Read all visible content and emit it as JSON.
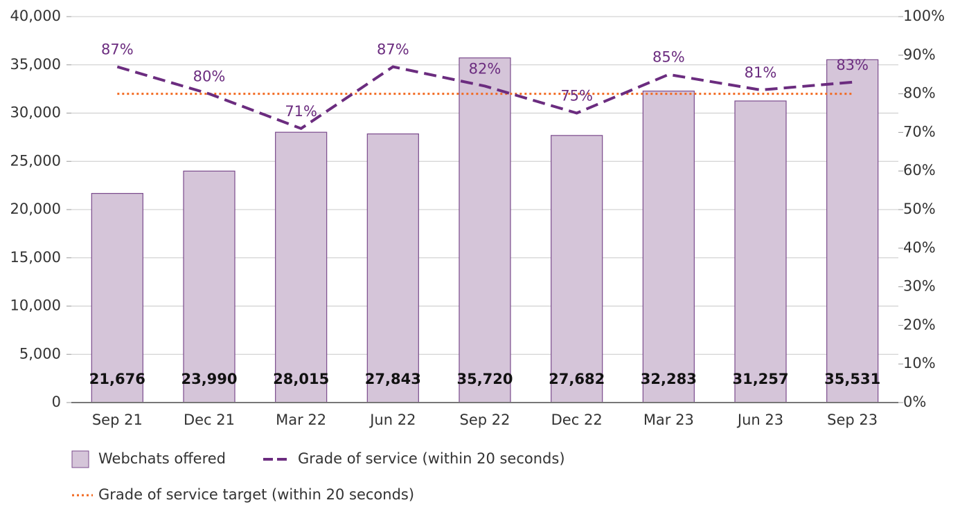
{
  "chart_data": {
    "type": "bar",
    "categories": [
      "Sep 21",
      "Dec 21",
      "Mar 22",
      "Jun 22",
      "Sep 22",
      "Dec 22",
      "Mar 23",
      "Jun 23",
      "Sep 23"
    ],
    "series": [
      {
        "name": "Webchats offered",
        "type": "bar",
        "color": "#d5c5d9",
        "stroke": "#7a4a8c",
        "values": [
          21676,
          23990,
          28015,
          27843,
          35720,
          27682,
          32283,
          31257,
          35531
        ],
        "value_labels": [
          "21,676",
          "23,990",
          "28,015",
          "27,843",
          "35,720",
          "27,682",
          "32,283",
          "31,257",
          "35,531"
        ]
      },
      {
        "name": "Grade of service (within 20 seconds)",
        "type": "line",
        "axis": "y2",
        "color": "#6b2c7f",
        "values": [
          87,
          80,
          71,
          87,
          82,
          75,
          85,
          81,
          83
        ],
        "value_labels": [
          "87%",
          "80%",
          "71%",
          "87%",
          "82%",
          "75%",
          "85%",
          "81%",
          "83%"
        ]
      }
    ],
    "target": {
      "name": "Grade of service target (within 20 seconds)",
      "value": 80,
      "color": "#f26a21"
    },
    "ylim": [
      0,
      40000
    ],
    "yticks": [
      0,
      {
        "value": 5000,
        "label": "5,000"
      },
      {
        "value": 10000,
        "label": "10,000"
      },
      {
        "value": 15000,
        "label": "15,000"
      },
      {
        "value": 20000,
        "label": "20,000"
      },
      {
        "value": 25000,
        "label": "25,000"
      },
      {
        "value": 30000,
        "label": "30,000"
      },
      {
        "value": 35000,
        "label": "35,000"
      },
      {
        "value": 40000,
        "label": "40,000"
      }
    ],
    "y2lim": [
      0,
      100
    ],
    "y2ticks": [
      {
        "value": 0,
        "label": "0%"
      },
      {
        "value": 10,
        "label": "10%"
      },
      {
        "value": 20,
        "label": "20%"
      },
      {
        "value": 30,
        "label": "30%"
      },
      {
        "value": 40,
        "label": "40%"
      },
      {
        "value": 50,
        "label": "50%"
      },
      {
        "value": 60,
        "label": "60%"
      },
      {
        "value": 70,
        "label": "70%"
      },
      {
        "value": 80,
        "label": "80%"
      },
      {
        "value": 90,
        "label": "90%"
      },
      {
        "value": 100,
        "label": "100%"
      }
    ],
    "grid": true
  }
}
